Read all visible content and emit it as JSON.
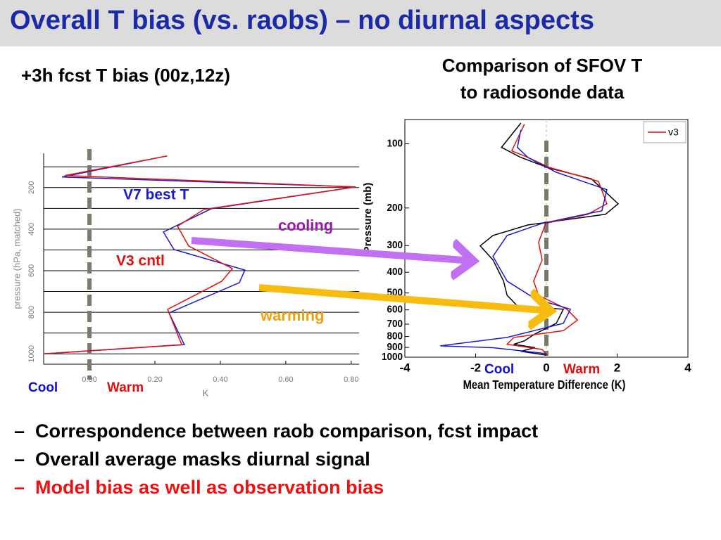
{
  "slide": {
    "title": "Overall T bias (vs. raobs) – no diurnal aspects",
    "left_subtitle": "+3h fcst T bias (00z,12z)",
    "right_subtitle": [
      "Comparison of SFOV T",
      "to radiosonde data"
    ],
    "bullet_marker": "–",
    "bullets": [
      {
        "text": "Correspondence between raob comparison, fcst impact",
        "color": "#000000"
      },
      {
        "text": "Overall average masks diurnal signal",
        "color": "#000000"
      },
      {
        "text": "Model bias as well as observation bias",
        "color": "#ee1111"
      }
    ]
  },
  "chart_data": [
    {
      "type": "line",
      "ylabel": "pressure (hPa, matched)",
      "xlabel": "K",
      "xlim": [
        -0.14,
        0.824
      ],
      "ylim": [
        1050,
        35
      ],
      "xticks": [
        {
          "value": 0,
          "label": "0.00"
        },
        {
          "value": 0.2,
          "label": "0.20"
        },
        {
          "value": 0.4,
          "label": "0.40"
        },
        {
          "value": 0.6,
          "label": "0.60"
        },
        {
          "value": 0.8,
          "label": "0.80"
        }
      ],
      "yticks": [
        200,
        400,
        600,
        800,
        1000
      ],
      "minor_yticks": [
        100,
        300,
        500,
        700,
        900
      ],
      "grid": true,
      "series": [
        {
          "name": "V7 best T",
          "color": "#1a1ad0",
          "values": [
            0.237,
            -0.084,
            0.813,
            0.372,
            0.226,
            0.258,
            0.475,
            0.458,
            0.243,
            0.29,
            -0.14
          ],
          "pressure": [
            48,
            149,
            197,
            302,
            414,
            498,
            597,
            658,
            803,
            956,
            1000
          ]
        },
        {
          "name": "V3 cntl",
          "color": "#e01010",
          "values": [
            0.237,
            -0.075,
            0.813,
            0.35,
            0.269,
            0.303,
            0.437,
            0.404,
            0.239,
            0.282,
            -0.14
          ],
          "pressure": [
            48,
            142,
            197,
            305,
            386,
            481,
            590,
            651,
            786,
            956,
            1000
          ]
        }
      ],
      "annotations": [
        {
          "text": "Cool",
          "color": "#1010d0"
        },
        {
          "text": "Warm",
          "color": "#e01010"
        },
        {
          "text": "cooling",
          "color": "#9a1ab0"
        },
        {
          "text": "warming",
          "color": "#f0a010"
        }
      ]
    },
    {
      "type": "line",
      "ylabel": "Pressure (mb)",
      "xlabel": "Mean Temperature Difference (K)",
      "xlim": [
        -4,
        4
      ],
      "ylim": [
        1000,
        77
      ],
      "ylog": true,
      "xticks": [
        -4,
        -2,
        0,
        2,
        4
      ],
      "yticks": [
        100,
        200,
        300,
        400,
        500,
        600,
        700,
        800,
        900,
        1000
      ],
      "legend": "upper right",
      "series": [
        {
          "color": "#000000",
          "values": [
            -0.72,
            -1.27,
            -0.72,
            0.08,
            1.27,
            2.03,
            1.67,
            -0.52,
            -1.51,
            -1.87,
            -1.51,
            -1.21,
            -1.11,
            -0.82,
            0.48,
            0.28,
            -0.32,
            -0.62,
            -0.92,
            -0.32,
            -0.72,
            0
          ],
          "pressure": [
            80,
            104,
            116,
            130,
            146,
            191,
            214,
            240,
            269,
            301,
            350,
            440,
            513,
            575,
            596,
            694,
            778,
            838,
            870,
            903,
            938,
            978
          ]
        },
        {
          "name": "v3",
          "color": "#e01010",
          "values": [
            -0.62,
            -0.98,
            -0.62,
            0.08,
            1.47,
            1.71,
            1.17,
            -0.02,
            -0.22,
            -0.12,
            -0.36,
            -0.22,
            0.58,
            0.88,
            0.48,
            -0.92,
            -1.11,
            -0.12,
            0.02
          ],
          "pressure": [
            81,
            108,
            114,
            129,
            150,
            191,
            214,
            236,
            290,
            350,
            440,
            513,
            596,
            670,
            751,
            808,
            870,
            920,
            978
          ]
        },
        {
          "color": "#1a1ad0",
          "values": [
            -0.72,
            -0.82,
            -0.52,
            0.28,
            1.71,
            1.57,
            -0.12,
            -1.11,
            -1.51,
            -1.11,
            -0.32,
            0.68,
            0.48,
            -1.11,
            -3.0,
            -1.51,
            0
          ],
          "pressure": [
            86,
            104,
            116,
            136,
            164,
            206,
            236,
            269,
            337,
            440,
            532,
            596,
            694,
            808,
            885,
            903,
            963
          ]
        }
      ],
      "annotations": [
        {
          "text": "Cool",
          "color": "#1010d0"
        },
        {
          "text": "Warm",
          "color": "#e01010"
        }
      ]
    }
  ]
}
